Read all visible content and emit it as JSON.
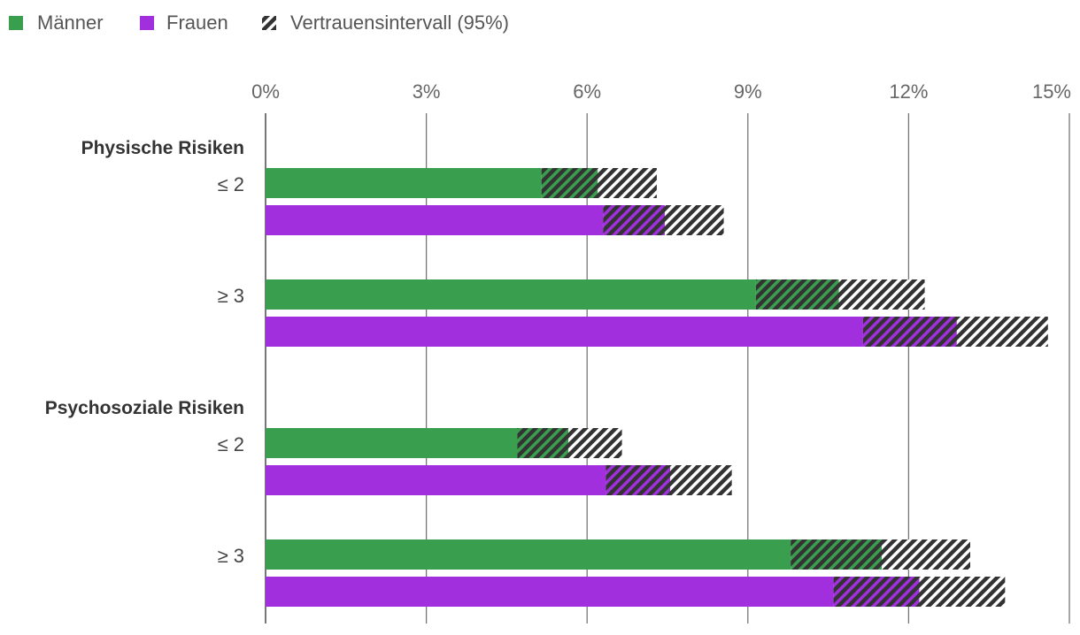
{
  "chart_data": {
    "type": "bar",
    "orientation": "horizontal",
    "legend": [
      {
        "key": "men",
        "label": "Männer",
        "color": "#3a9e4f"
      },
      {
        "key": "women",
        "label": "Frauen",
        "color": "#a12fdd"
      },
      {
        "key": "ci",
        "label": "Vertrauensintervall (95%)",
        "color": "#333333"
      }
    ],
    "x_ticks": [
      {
        "value": 0,
        "label": "0%"
      },
      {
        "value": 3,
        "label": "3%"
      },
      {
        "value": 6,
        "label": "6%"
      },
      {
        "value": 9,
        "label": "9%"
      },
      {
        "value": 12,
        "label": "12%"
      },
      {
        "value": 15,
        "label": "15%"
      }
    ],
    "xlim": [
      0,
      15
    ],
    "grid": true,
    "legend_position": "top-left",
    "groups": [
      {
        "label": "Physische Risiken",
        "categories": [
          {
            "label": "≤ 2",
            "bars": [
              {
                "series": "men",
                "value": 6.2,
                "ci_low": 5.15,
                "ci_high": 7.3
              },
              {
                "series": "women",
                "value": 7.45,
                "ci_low": 6.3,
                "ci_high": 8.55
              }
            ]
          },
          {
            "label": "≥ 3",
            "bars": [
              {
                "series": "men",
                "value": 10.7,
                "ci_low": 9.15,
                "ci_high": 12.3
              },
              {
                "series": "women",
                "value": 12.9,
                "ci_low": 11.15,
                "ci_high": 14.6
              }
            ]
          }
        ]
      },
      {
        "label": "Psychosoziale Risiken",
        "categories": [
          {
            "label": "≤ 2",
            "bars": [
              {
                "series": "men",
                "value": 5.65,
                "ci_low": 4.7,
                "ci_high": 6.65
              },
              {
                "series": "women",
                "value": 7.55,
                "ci_low": 6.35,
                "ci_high": 8.7
              }
            ]
          },
          {
            "label": "≥ 3",
            "bars": [
              {
                "series": "men",
                "value": 11.5,
                "ci_low": 9.8,
                "ci_high": 13.15
              },
              {
                "series": "women",
                "value": 12.2,
                "ci_low": 10.6,
                "ci_high": 13.8
              }
            ]
          }
        ]
      }
    ]
  }
}
